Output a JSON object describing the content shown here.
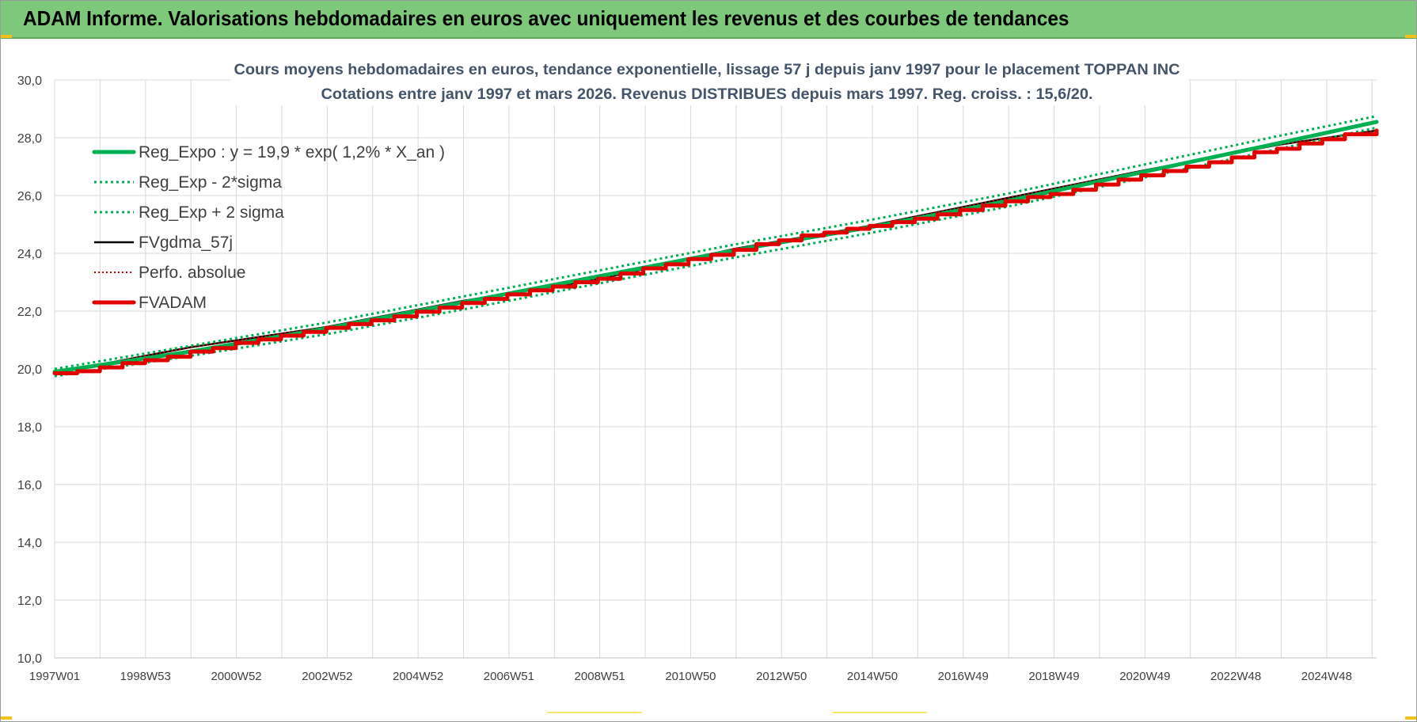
{
  "banner": {
    "title": "ADAM Informe. Valorisations hebdomadaires en euros avec uniquement les revenus et des courbes de tendances"
  },
  "chart_data": {
    "type": "line",
    "title": "Cours moyens hebdomadaires en euros, tendance exponentielle, lissage 57 j depuis janv 1997  pour le placement TOPPAN INC",
    "subtitle": "Cotations entre janv 1997 et mars 2026. Revenus DISTRIBUES depuis mars 1997. Reg. croiss. : 15,6/20.",
    "ylim": [
      10,
      30
    ],
    "y_ticks": [
      "10,0",
      "12,0",
      "14,0",
      "16,0",
      "18,0",
      "20,0",
      "22,0",
      "24,0",
      "26,0",
      "28,0",
      "30,0"
    ],
    "x_ticks": [
      "1997W01",
      "1998W53",
      "2000W52",
      "2002W52",
      "2004W52",
      "2006W51",
      "2008W51",
      "2010W50",
      "2012W50",
      "2014W50",
      "2016W49",
      "2018W49",
      "2020W49",
      "2022W48",
      "2024W48"
    ],
    "x_range_years": [
      1997.0,
      2026.2
    ],
    "grid": true,
    "legend_position": "top-left",
    "colors": {
      "reg_expo": "#00b050",
      "sigma": "#00b050",
      "fvgdma": "#000000",
      "perfo": "#c00000",
      "fvadam": "#e00000",
      "grid": "#d9d9d9"
    },
    "series": [
      {
        "name": "Reg_Expo : y = 19,9 * exp( 1,2% *  X_an )",
        "style": "solid-thick",
        "x": [
          1997,
          2000,
          2003,
          2006,
          2009,
          2012,
          2015,
          2018,
          2021,
          2024,
          2026.2
        ],
        "y": [
          19.9,
          20.6,
          21.4,
          22.3,
          23.2,
          24.1,
          24.9,
          25.8,
          26.8,
          27.8,
          28.55
        ]
      },
      {
        "name": "Reg_Exp - 2*sigma",
        "style": "dotted",
        "x": [
          1997,
          2000,
          2003,
          2006,
          2009,
          2012,
          2015,
          2018,
          2021,
          2024,
          2026.2
        ],
        "y": [
          19.75,
          20.45,
          21.2,
          22.05,
          22.95,
          23.85,
          24.7,
          25.6,
          26.6,
          27.6,
          28.35
        ]
      },
      {
        "name": "Reg_Exp + 2 sigma",
        "style": "dotted",
        "x": [
          1997,
          2000,
          2003,
          2006,
          2009,
          2012,
          2015,
          2018,
          2021,
          2024,
          2026.2
        ],
        "y": [
          20.0,
          20.8,
          21.6,
          22.5,
          23.4,
          24.3,
          25.15,
          26.05,
          27.05,
          28.05,
          28.75
        ]
      },
      {
        "name": "FVgdma_57j",
        "style": "solid",
        "x": [
          1997,
          2000,
          2003,
          2006,
          2009,
          2012,
          2015,
          2018,
          2021,
          2024,
          2026.2
        ],
        "y": [
          19.85,
          20.75,
          21.45,
          22.35,
          23.1,
          24.15,
          24.95,
          25.9,
          26.85,
          27.75,
          28.25
        ]
      },
      {
        "name": "Perfo. absolue",
        "style": "dotted-thin",
        "x": [
          1997,
          2000,
          2003,
          2006,
          2009,
          2012,
          2015,
          2018,
          2021,
          2024,
          2026.2
        ],
        "y": [
          19.85,
          20.75,
          21.45,
          22.35,
          23.1,
          24.15,
          24.95,
          25.9,
          26.85,
          27.75,
          28.25
        ]
      },
      {
        "name": "FVADAM",
        "style": "solid-thick",
        "x": [
          1997.0,
          1997.5,
          1998.0,
          1998.5,
          1999.0,
          1999.5,
          2000.0,
          2000.5,
          2001.0,
          2001.5,
          2002.0,
          2002.5,
          2003.0,
          2003.5,
          2004.0,
          2004.5,
          2005.0,
          2005.5,
          2006.0,
          2006.5,
          2007.0,
          2007.5,
          2008.0,
          2008.5,
          2009.0,
          2009.5,
          2010.0,
          2010.5,
          2011.0,
          2011.5,
          2012.0,
          2012.5,
          2013.0,
          2013.5,
          2014.0,
          2014.5,
          2015.0,
          2015.5,
          2016.0,
          2016.5,
          2017.0,
          2017.5,
          2018.0,
          2018.5,
          2019.0,
          2019.5,
          2020.0,
          2020.5,
          2021.0,
          2021.5,
          2022.0,
          2022.5,
          2023.0,
          2023.5,
          2024.0,
          2024.5,
          2025.0,
          2025.5,
          2026.2
        ],
        "y": [
          19.85,
          19.92,
          20.05,
          20.2,
          20.3,
          20.42,
          20.6,
          20.72,
          20.9,
          21.02,
          21.15,
          21.28,
          21.42,
          21.55,
          21.68,
          21.82,
          21.98,
          22.12,
          22.28,
          22.42,
          22.58,
          22.72,
          22.85,
          23.0,
          23.12,
          23.3,
          23.48,
          23.62,
          23.8,
          23.95,
          24.12,
          24.32,
          24.45,
          24.62,
          24.72,
          24.85,
          24.95,
          25.08,
          25.2,
          25.35,
          25.5,
          25.65,
          25.8,
          25.95,
          26.05,
          26.2,
          26.38,
          26.55,
          26.7,
          26.85,
          27.0,
          27.15,
          27.32,
          27.5,
          27.62,
          27.8,
          27.95,
          28.12,
          28.25
        ]
      }
    ]
  }
}
